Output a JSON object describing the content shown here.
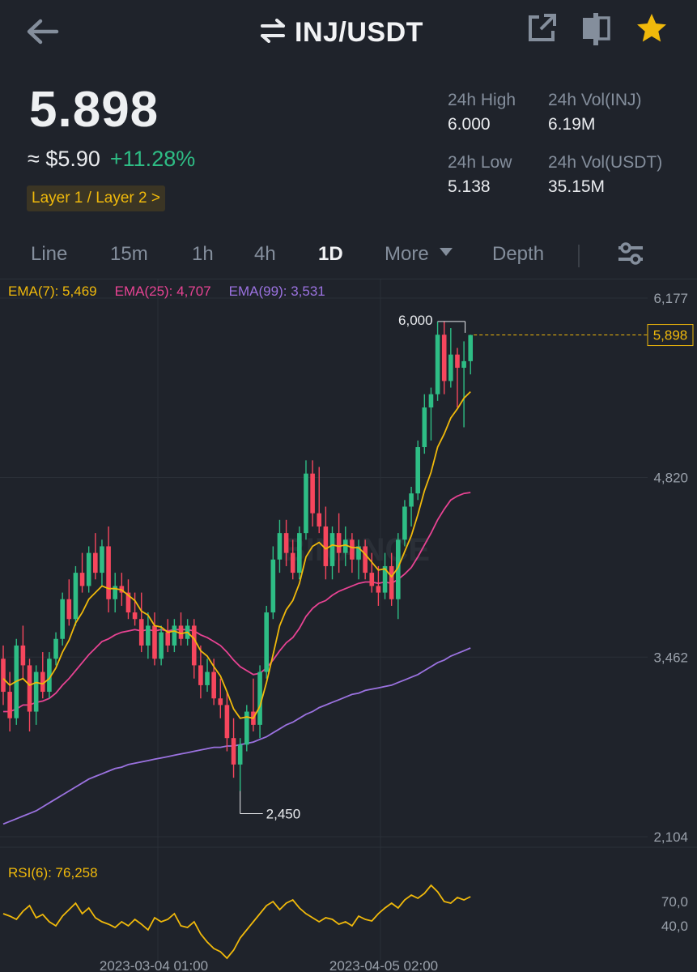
{
  "header": {
    "pair": "INJ/USDT"
  },
  "price": {
    "last": "5.898",
    "fiat": "≈ $5.90",
    "change": "+11.28%",
    "tag": "Layer 1 / Layer 2 >"
  },
  "stats": {
    "high_label": "24h High",
    "high_value": "6.000",
    "low_label": "24h Low",
    "low_value": "5.138",
    "vol_base_label": "24h Vol(INJ)",
    "vol_base_value": "6.19M",
    "vol_quote_label": "24h Vol(USDT)",
    "vol_quote_value": "35.15M"
  },
  "tabs": [
    {
      "label": "Line"
    },
    {
      "label": "15m"
    },
    {
      "label": "1h"
    },
    {
      "label": "4h"
    },
    {
      "label": "1D"
    },
    {
      "label": "More"
    },
    {
      "label": "Depth"
    }
  ],
  "active_tab": "1D",
  "indicators": {
    "ema7": "EMA(7): 5,469",
    "ema25": "EMA(25): 4,707",
    "ema99": "EMA(99): 3,531",
    "rsi": "RSI(6): 76,258"
  },
  "colors": {
    "up": "#2ebd85",
    "down": "#f6465d",
    "ema7": "#f0b90b",
    "ema25": "#e84393",
    "ema99": "#9b72e0",
    "rsi": "#f0b90b"
  },
  "watermark": "BINANCE",
  "chart_data": {
    "type": "candlestick",
    "y_axis_ticks": [
      "6,177",
      "4,820",
      "3,462",
      "2,104"
    ],
    "y_range": [
      2.104,
      6.177
    ],
    "current_price_label": "5,898",
    "max_label": "6,000",
    "min_label": "2,450",
    "x_labels": [
      "2023-03-04 01:00",
      "2023-04-05 02:00"
    ],
    "candles": [
      [
        3.45,
        3.55,
        3.1,
        3.2
      ],
      [
        3.2,
        3.35,
        2.9,
        3.0
      ],
      [
        3.0,
        3.6,
        2.95,
        3.55
      ],
      [
        3.55,
        3.7,
        3.3,
        3.4
      ],
      [
        3.4,
        3.45,
        2.9,
        3.05
      ],
      [
        3.05,
        3.4,
        2.95,
        3.35
      ],
      [
        3.35,
        3.5,
        3.15,
        3.2
      ],
      [
        3.2,
        3.5,
        3.15,
        3.45
      ],
      [
        3.45,
        3.65,
        3.4,
        3.6
      ],
      [
        3.6,
        3.95,
        3.55,
        3.9
      ],
      [
        3.9,
        4.05,
        3.7,
        3.75
      ],
      [
        3.75,
        4.15,
        3.7,
        4.1
      ],
      [
        4.1,
        4.25,
        3.95,
        4.0
      ],
      [
        4.0,
        4.3,
        3.95,
        4.25
      ],
      [
        4.25,
        4.4,
        4.05,
        4.1
      ],
      [
        4.1,
        4.35,
        4.0,
        4.3
      ],
      [
        4.3,
        4.45,
        3.8,
        3.9
      ],
      [
        3.9,
        4.1,
        3.8,
        4.0
      ],
      [
        4.0,
        4.1,
        3.85,
        3.95
      ],
      [
        3.95,
        4.05,
        3.75,
        3.8
      ],
      [
        3.8,
        3.95,
        3.7,
        3.75
      ],
      [
        3.75,
        3.95,
        3.5,
        3.55
      ],
      [
        3.55,
        3.8,
        3.45,
        3.7
      ],
      [
        3.7,
        3.8,
        3.4,
        3.45
      ],
      [
        3.45,
        3.7,
        3.4,
        3.65
      ],
      [
        3.65,
        3.75,
        3.5,
        3.55
      ],
      [
        3.55,
        3.75,
        3.5,
        3.7
      ],
      [
        3.7,
        3.8,
        3.55,
        3.6
      ],
      [
        3.6,
        3.75,
        3.55,
        3.7
      ],
      [
        3.7,
        3.75,
        3.3,
        3.4
      ],
      [
        3.4,
        3.55,
        3.15,
        3.25
      ],
      [
        3.25,
        3.45,
        3.2,
        3.35
      ],
      [
        3.35,
        3.45,
        3.1,
        3.15
      ],
      [
        3.15,
        3.3,
        3.0,
        3.1
      ],
      [
        3.1,
        3.2,
        2.75,
        2.85
      ],
      [
        2.85,
        3.0,
        2.55,
        2.65
      ],
      [
        2.65,
        2.85,
        2.45,
        2.8
      ],
      [
        2.8,
        3.1,
        2.75,
        3.05
      ],
      [
        3.05,
        3.3,
        2.9,
        2.95
      ],
      [
        2.95,
        3.4,
        2.85,
        3.35
      ],
      [
        3.35,
        3.85,
        3.3,
        3.8
      ],
      [
        3.8,
        4.3,
        3.75,
        4.2
      ],
      [
        4.2,
        4.5,
        4.1,
        4.4
      ],
      [
        4.4,
        4.5,
        4.15,
        4.25
      ],
      [
        4.25,
        4.35,
        4.05,
        4.1
      ],
      [
        4.1,
        4.45,
        4.05,
        4.4
      ],
      [
        4.4,
        4.95,
        4.35,
        4.85
      ],
      [
        4.85,
        4.95,
        4.45,
        4.55
      ],
      [
        4.55,
        4.9,
        4.4,
        4.45
      ],
      [
        4.45,
        4.6,
        4.05,
        4.15
      ],
      [
        4.15,
        4.45,
        4.05,
        4.4
      ],
      [
        4.4,
        4.55,
        4.1,
        4.25
      ],
      [
        4.25,
        4.45,
        4.15,
        4.35
      ],
      [
        4.35,
        4.4,
        4.1,
        4.2
      ],
      [
        4.2,
        4.35,
        4.05,
        4.3
      ],
      [
        4.3,
        4.35,
        4.05,
        4.1
      ],
      [
        4.1,
        4.25,
        3.95,
        4.0
      ],
      [
        4.0,
        4.15,
        3.85,
        3.95
      ],
      [
        3.95,
        4.25,
        3.9,
        4.15
      ],
      [
        4.15,
        4.25,
        3.85,
        3.9
      ],
      [
        3.9,
        4.4,
        3.75,
        4.35
      ],
      [
        4.35,
        4.65,
        4.3,
        4.6
      ],
      [
        4.6,
        4.75,
        4.45,
        4.7
      ],
      [
        4.7,
        5.1,
        4.65,
        5.05
      ],
      [
        5.05,
        5.45,
        5.0,
        5.35
      ],
      [
        5.35,
        5.5,
        5.1,
        5.45
      ],
      [
        5.45,
        6.0,
        5.4,
        5.9
      ],
      [
        5.9,
        6.0,
        5.45,
        5.55
      ],
      [
        5.55,
        5.95,
        5.5,
        5.75
      ],
      [
        5.75,
        5.8,
        5.35,
        5.65
      ],
      [
        5.65,
        5.85,
        5.2,
        5.7
      ],
      [
        5.7,
        5.9,
        5.6,
        5.898
      ]
    ],
    "ema7": [
      3.3,
      3.25,
      3.28,
      3.3,
      3.25,
      3.27,
      3.26,
      3.3,
      3.38,
      3.5,
      3.59,
      3.72,
      3.8,
      3.9,
      3.95,
      4.0,
      3.98,
      3.98,
      3.97,
      3.93,
      3.89,
      3.81,
      3.78,
      3.7,
      3.69,
      3.65,
      3.66,
      3.64,
      3.65,
      3.6,
      3.51,
      3.47,
      3.39,
      3.32,
      3.2,
      3.07,
      3.0,
      3.01,
      3.0,
      3.09,
      3.27,
      3.48,
      3.7,
      3.82,
      3.89,
      4.02,
      4.22,
      4.3,
      4.33,
      4.28,
      4.31,
      4.3,
      4.31,
      4.29,
      4.29,
      4.24,
      4.18,
      4.12,
      4.13,
      4.07,
      4.14,
      4.26,
      4.38,
      4.54,
      4.72,
      4.86,
      5.05,
      5.15,
      5.27,
      5.34,
      5.42,
      5.469
    ],
    "ema25": [
      3.05,
      3.05,
      3.07,
      3.1,
      3.1,
      3.12,
      3.13,
      3.15,
      3.19,
      3.25,
      3.3,
      3.36,
      3.42,
      3.48,
      3.53,
      3.58,
      3.6,
      3.63,
      3.65,
      3.66,
      3.67,
      3.66,
      3.67,
      3.66,
      3.67,
      3.66,
      3.67,
      3.67,
      3.67,
      3.66,
      3.63,
      3.61,
      3.58,
      3.55,
      3.5,
      3.44,
      3.39,
      3.36,
      3.33,
      3.34,
      3.38,
      3.44,
      3.51,
      3.57,
      3.61,
      3.68,
      3.77,
      3.83,
      3.87,
      3.89,
      3.93,
      3.96,
      3.98,
      4.0,
      4.02,
      4.03,
      4.03,
      4.02,
      4.03,
      4.02,
      4.05,
      4.09,
      4.14,
      4.22,
      4.31,
      4.4,
      4.5,
      4.58,
      4.65,
      4.68,
      4.7,
      4.707
    ],
    "ema99": [
      2.2,
      2.22,
      2.24,
      2.26,
      2.28,
      2.3,
      2.33,
      2.36,
      2.39,
      2.42,
      2.45,
      2.48,
      2.51,
      2.54,
      2.56,
      2.58,
      2.6,
      2.62,
      2.63,
      2.65,
      2.66,
      2.67,
      2.68,
      2.69,
      2.7,
      2.71,
      2.72,
      2.73,
      2.74,
      2.75,
      2.76,
      2.77,
      2.78,
      2.78,
      2.79,
      2.79,
      2.8,
      2.81,
      2.82,
      2.84,
      2.86,
      2.89,
      2.92,
      2.95,
      2.97,
      3.0,
      3.03,
      3.05,
      3.08,
      3.1,
      3.12,
      3.14,
      3.16,
      3.18,
      3.19,
      3.21,
      3.22,
      3.23,
      3.24,
      3.25,
      3.27,
      3.29,
      3.31,
      3.33,
      3.36,
      3.39,
      3.42,
      3.44,
      3.47,
      3.49,
      3.51,
      3.531
    ],
    "rsi_ticks": [
      "70,0",
      "40,0"
    ],
    "rsi": [
      55,
      52,
      48,
      58,
      65,
      50,
      54,
      45,
      40,
      52,
      60,
      68,
      55,
      62,
      50,
      45,
      42,
      38,
      45,
      40,
      48,
      42,
      35,
      50,
      45,
      48,
      55,
      40,
      38,
      45,
      30,
      20,
      12,
      8,
      0,
      10,
      25,
      35,
      45,
      55,
      65,
      70,
      60,
      68,
      72,
      62,
      55,
      50,
      45,
      50,
      48,
      42,
      45,
      40,
      52,
      48,
      46,
      55,
      62,
      68,
      62,
      72,
      78,
      74,
      80,
      90,
      82,
      70,
      68,
      75,
      72,
      76
    ]
  }
}
